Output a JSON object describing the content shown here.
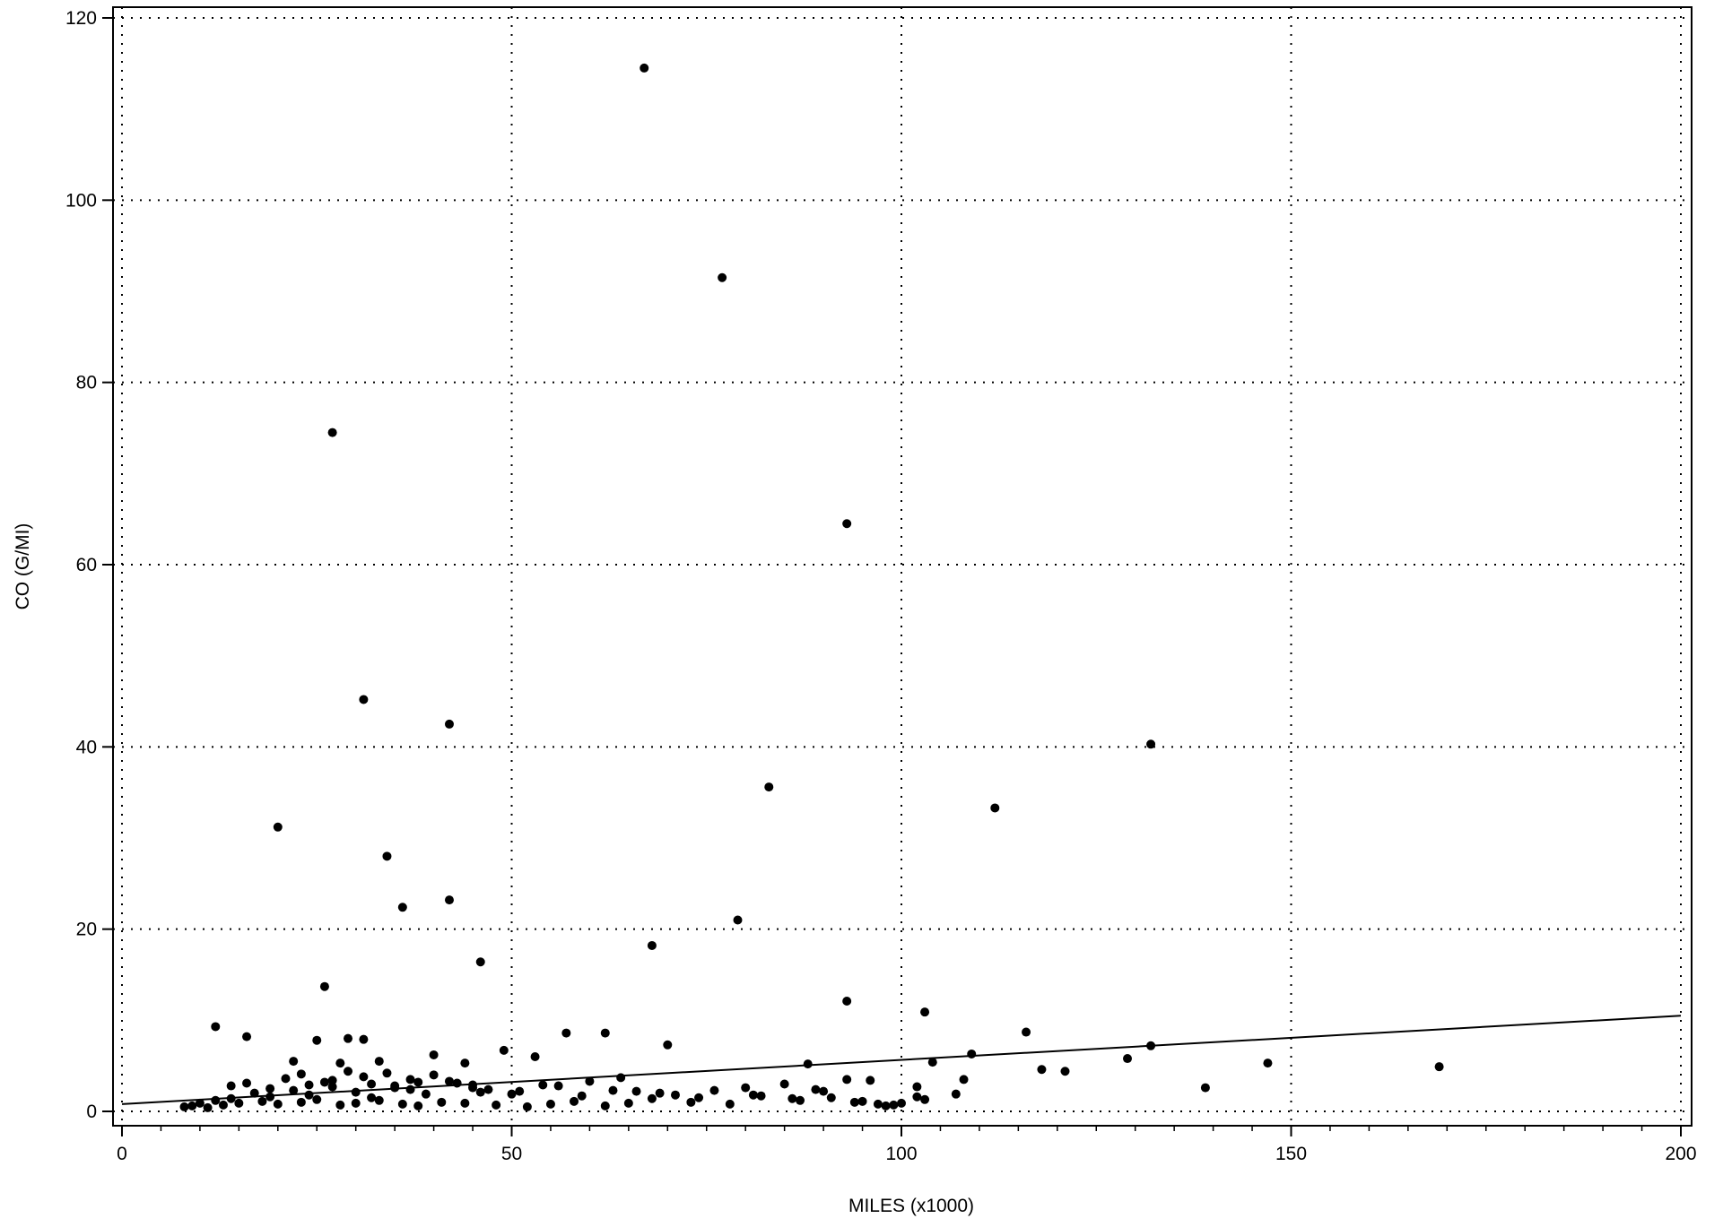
{
  "chart_data": {
    "type": "scatter",
    "title": "",
    "xlabel": "MILES  (x1000)",
    "ylabel": "CO  (G/MI)",
    "xlim": [
      0,
      200
    ],
    "ylim": [
      0,
      120
    ],
    "x_ticks": [
      0,
      50,
      100,
      150,
      200
    ],
    "y_ticks": [
      0,
      20,
      40,
      60,
      80,
      100,
      120
    ],
    "x_tick_labels": [
      "0",
      "50",
      "100",
      "150",
      "200"
    ],
    "y_tick_labels": [
      "0",
      "20",
      "40",
      "60",
      "80",
      "100",
      "120"
    ],
    "x_minor_step": 5,
    "grid": "dotted, at major ticks",
    "colors": {
      "points": "#000000",
      "line": "#000000",
      "frame": "#000000",
      "grid": "#000000"
    },
    "series": [
      {
        "kind": "points",
        "x": [
          27,
          67,
          77,
          93,
          31,
          42,
          20,
          34,
          36,
          42,
          83,
          79,
          112,
          132,
          68,
          46,
          26,
          93,
          103,
          12,
          16,
          25,
          29,
          31,
          57,
          62,
          70,
          49,
          53,
          33,
          40,
          28,
          22,
          44,
          116,
          109,
          104,
          118,
          147,
          169,
          132,
          139,
          129,
          121,
          108,
          96,
          88,
          102,
          102,
          97,
          93,
          89,
          85,
          80,
          76,
          71,
          66,
          64,
          60,
          56,
          54,
          51,
          47,
          45,
          43,
          39,
          37,
          35,
          32,
          30,
          27,
          24,
          22,
          19,
          17,
          14,
          12,
          10,
          9,
          8,
          11,
          13,
          15,
          18,
          20,
          23,
          25,
          28,
          30,
          33,
          36,
          38,
          41,
          44,
          48,
          52,
          55,
          58,
          62,
          65,
          68,
          73,
          78,
          82,
          87,
          91,
          94,
          98,
          100,
          103,
          21,
          23,
          26,
          29,
          31,
          34,
          37,
          40,
          42,
          45,
          14,
          16,
          19,
          24,
          27,
          32,
          35,
          38,
          46,
          50,
          59,
          63,
          69,
          74,
          81,
          86,
          90,
          95,
          99,
          107
        ],
        "y": [
          74.5,
          114.5,
          91.5,
          64.5,
          45.2,
          42.5,
          31.2,
          28,
          22.4,
          23.2,
          35.6,
          21,
          33.3,
          40.3,
          18.2,
          16.4,
          13.7,
          12.1,
          10.9,
          9.3,
          8.2,
          7.8,
          8.0,
          7.9,
          8.6,
          8.6,
          7.3,
          6.7,
          6.0,
          5.5,
          6.2,
          5.3,
          5.5,
          5.3,
          8.7,
          6.3,
          5.4,
          4.6,
          5.3,
          4.9,
          7.2,
          2.6,
          5.8,
          4.4,
          3.5,
          3.4,
          5.2,
          2.7,
          1.6,
          0.8,
          3.5,
          2.4,
          3.0,
          2.6,
          2.3,
          1.8,
          2.2,
          3.7,
          3.3,
          2.8,
          2.9,
          2.2,
          2.4,
          2.6,
          3.1,
          1.9,
          2.4,
          2.8,
          1.5,
          2.1,
          2.7,
          1.8,
          2.3,
          1.6,
          2.0,
          1.4,
          1.2,
          0.9,
          0.6,
          0.5,
          0.4,
          0.7,
          0.9,
          1.1,
          0.8,
          1.0,
          1.3,
          0.7,
          0.9,
          1.2,
          0.8,
          0.6,
          1.0,
          0.9,
          0.7,
          0.5,
          0.8,
          1.1,
          0.6,
          0.9,
          1.4,
          1.0,
          0.8,
          1.7,
          1.2,
          1.5,
          1.0,
          0.6,
          0.9,
          1.3,
          3.6,
          4.1,
          3.2,
          4.4,
          3.8,
          4.2,
          3.5,
          4.0,
          3.3,
          2.9,
          2.8,
          3.1,
          2.5,
          2.9,
          3.4,
          3.0,
          2.6,
          3.2,
          2.1,
          1.9,
          1.7,
          2.3,
          2.0,
          1.5,
          1.8,
          1.4,
          2.2,
          1.1,
          0.7,
          1.9
        ]
      },
      {
        "kind": "line",
        "x": [
          0,
          200
        ],
        "y": [
          0.8,
          10.5
        ]
      }
    ]
  }
}
